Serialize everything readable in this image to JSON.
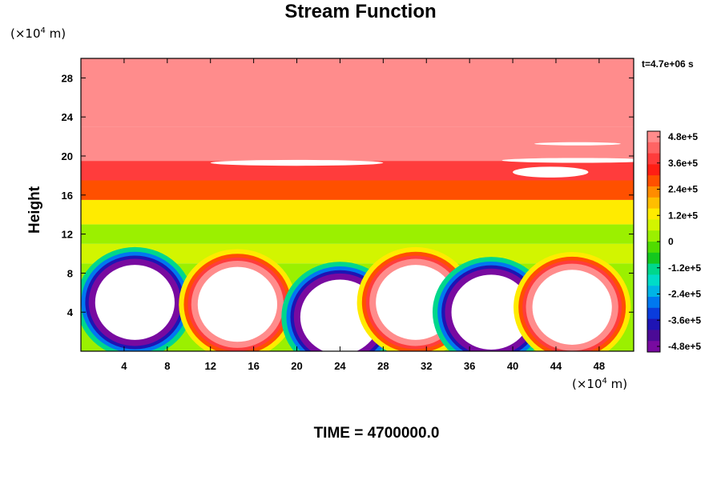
{
  "chart_data": {
    "type": "heatmap",
    "title": "Stream Function",
    "ylabel": "Height",
    "yunit_prefix": "(×10",
    "yunit_exp": "4",
    "yunit_suffix": " m)",
    "xunit_prefix": "(×10",
    "xunit_exp": "4",
    "xunit_suffix": " m)",
    "time_annotation": "t=4.7e+06 s",
    "footer": "TIME = 4700000.0",
    "xlim": [
      0,
      51.2
    ],
    "ylim": [
      0,
      30
    ],
    "x_ticks": [
      4,
      8,
      12,
      16,
      20,
      24,
      28,
      32,
      36,
      40,
      44,
      48
    ],
    "y_ticks": [
      4,
      8,
      12,
      16,
      20,
      24,
      28
    ],
    "colorbar": {
      "range": [
        -480000,
        480000
      ],
      "tick_labels": [
        "4.8e+5",
        "3.6e+5",
        "2.4e+5",
        "1.2e+5",
        "0",
        "-1.2e+5",
        "-2.4e+5",
        "-3.6e+5",
        "-4.8e+5"
      ],
      "colors": [
        "#ff8c8c",
        "#ff6464",
        "#ff3c3c",
        "#ff1e14",
        "#ff5000",
        "#ff8c00",
        "#ffbe00",
        "#ffeb00",
        "#d2f500",
        "#9bf000",
        "#50dc00",
        "#14c81e",
        "#00d78c",
        "#00dcc8",
        "#00b4e6",
        "#0078f0",
        "#0a3cdc",
        "#1e14b4",
        "#4b0a96",
        "#780aa0"
      ]
    },
    "bands": [
      {
        "y0": 0,
        "y1": 5,
        "value": 40000
      },
      {
        "y0": 5,
        "y1": 9,
        "value": 20000
      },
      {
        "y0": 9,
        "y1": 11,
        "value": 60000
      },
      {
        "y0": 11,
        "y1": 13,
        "value": 5000
      },
      {
        "y0": 13,
        "y1": 15.5,
        "value": 140000
      },
      {
        "y0": 15.5,
        "y1": 17.5,
        "value": 250000
      },
      {
        "y0": 17.5,
        "y1": 19.5,
        "value": 360000
      },
      {
        "y0": 19.5,
        "y1": 23,
        "value": 470000
      },
      {
        "y0": 23,
        "y1": 30,
        "value": 460000
      }
    ],
    "cells": [
      {
        "x": 5,
        "y": 5,
        "sign": "negative"
      },
      {
        "x": 14.5,
        "y": 4.8,
        "sign": "positive"
      },
      {
        "x": 24,
        "y": 3.5,
        "sign": "negative"
      },
      {
        "x": 31,
        "y": 5,
        "sign": "positive"
      },
      {
        "x": 38,
        "y": 4,
        "sign": "negative"
      },
      {
        "x": 45.5,
        "y": 4.5,
        "sign": "positive"
      }
    ]
  }
}
